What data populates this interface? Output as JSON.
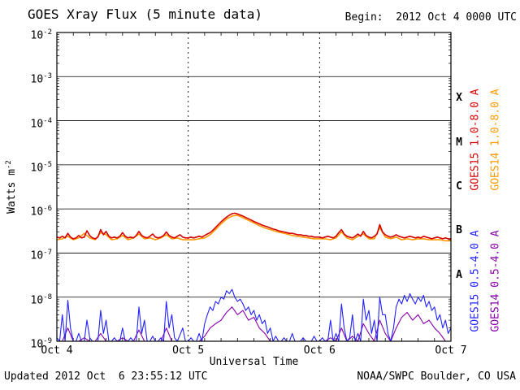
{
  "header": {
    "title": "GOES Xray Flux (5 minute data)",
    "begin": "Begin:  2012 Oct 4 0000 UTC"
  },
  "footer": {
    "updated": "Updated 2012 Oct  6 23:55:12 UTC",
    "credit": "NOAA/SWPC Boulder, CO USA"
  },
  "y_axis": {
    "title_base": "Watts m",
    "title_exp": "-2",
    "tick_exponents": [
      -2,
      -3,
      -4,
      -5,
      -6,
      -7,
      -8,
      -9
    ]
  },
  "x_axis": {
    "title": "Universal Time",
    "tick_labels": [
      "Oct 4",
      "Oct 5",
      "Oct 6",
      "Oct 7"
    ]
  },
  "flare_classes": [
    "X",
    "M",
    "C",
    "B",
    "A"
  ],
  "legend": [
    {
      "label": "GOES15 1.0-8.0 A",
      "color": "#d40000"
    },
    {
      "label": "GOES14 1.0-8.0 A",
      "color": "#ff9900"
    },
    {
      "label": "GOES15 0.5-4.0 A",
      "color": "#2222ff"
    },
    {
      "label": "GOES14 0.5-4.0 A",
      "color": "#8800aa"
    }
  ],
  "colors": {
    "background": "#ffffff",
    "axis": "#000000",
    "goes15_long": "#d40000",
    "goes14_long": "#ff9900",
    "goes15_short": "#2222ff",
    "goes14_short": "#8800aa"
  },
  "chart_data": {
    "type": "line",
    "title": "GOES Xray Flux (5 minute data)",
    "xlabel": "Universal Time",
    "ylabel": "Watts m^-2",
    "x_start": "2012-10-04 0000 UTC",
    "x_end": "2012-10-07 0000 UTC",
    "x_unit": "hours since begin",
    "x_range_hours": [
      0,
      72
    ],
    "y_scale": "log",
    "y_range": [
      1e-09,
      0.01
    ],
    "grid": "decades horizontal solid, day boundaries vertical dashed",
    "legend_position": "right, rotated",
    "series": [
      {
        "name": "GOES14 1.0-8.0 A",
        "color": "#ff9900",
        "scale": 1e-07,
        "dt_hours": 1,
        "values": [
          2.0,
          2.1,
          2.4,
          2.0,
          2.2,
          2.8,
          2.2,
          2.0,
          2.9,
          2.6,
          2.0,
          2.1,
          2.5,
          2.0,
          2.2,
          2.7,
          2.1,
          2.2,
          2.0,
          2.2,
          2.6,
          2.1,
          2.2,
          2.0,
          2.0,
          2.0,
          2.1,
          2.2,
          2.6,
          3.4,
          4.6,
          5.9,
          6.9,
          7.2,
          6.3,
          5.5,
          4.8,
          4.2,
          3.7,
          3.4,
          3.1,
          2.9,
          2.7,
          2.5,
          2.4,
          2.3,
          2.2,
          2.1,
          2.1,
          2.1,
          2.0,
          2.2,
          3.0,
          2.2,
          2.0,
          2.4,
          2.7,
          2.1,
          2.1,
          3.8,
          2.3,
          2.1,
          2.3,
          2.0,
          2.1,
          2.0,
          2.1,
          2.1,
          2.0,
          2.0,
          2.0,
          1.9,
          1.9
        ]
      },
      {
        "name": "GOES14 0.5-4.0 A",
        "color": "#8800aa",
        "scale": 1e-09,
        "dt_hours": 1,
        "values": [
          1.0,
          1.0,
          2.0,
          1.0,
          1.0,
          1.2,
          1.0,
          1.0,
          1.5,
          1.0,
          1.0,
          1.0,
          1.2,
          1.0,
          1.0,
          1.8,
          1.0,
          1.0,
          1.0,
          1.0,
          2.0,
          1.0,
          1.0,
          1.0,
          1.0,
          1.0,
          1.0,
          1.3,
          2.0,
          2.5,
          3.0,
          4.5,
          6.0,
          4.0,
          5.0,
          3.0,
          3.5,
          2.0,
          1.5,
          1.0,
          1.0,
          1.0,
          1.0,
          1.0,
          1.0,
          1.0,
          1.0,
          1.0,
          1.0,
          1.0,
          1.2,
          1.0,
          2.0,
          1.0,
          1.3,
          1.0,
          2.5,
          1.5,
          1.0,
          3.0,
          1.5,
          1.0,
          2.0,
          3.5,
          4.5,
          3.0,
          4.0,
          2.5,
          3.0,
          2.0,
          1.5,
          1.0,
          1.0
        ]
      },
      {
        "name": "GOES15 0.5-4.0 A",
        "color": "#2222ff",
        "scale": 1e-09,
        "dt_hours": 0.5,
        "values": [
          1.2,
          1.0,
          4.0,
          1.0,
          8.5,
          2.0,
          1.0,
          1.0,
          1.5,
          1.0,
          1.0,
          3.0,
          1.2,
          1.0,
          1.0,
          1.0,
          5.0,
          1.5,
          3.0,
          1.0,
          1.0,
          1.2,
          1.0,
          1.0,
          2.0,
          1.0,
          1.0,
          1.2,
          1.0,
          1.0,
          6.0,
          1.5,
          3.0,
          1.0,
          1.0,
          1.3,
          1.0,
          1.0,
          1.2,
          1.0,
          8.0,
          2.0,
          4.0,
          1.2,
          1.0,
          1.4,
          2.0,
          1.0,
          1.0,
          1.2,
          1.0,
          1.0,
          1.5,
          1.0,
          2.5,
          4.0,
          6.0,
          5.0,
          8.0,
          7.0,
          10.0,
          9.0,
          14.0,
          12.0,
          15.0,
          10.0,
          8.0,
          9.0,
          7.0,
          5.0,
          6.0,
          4.0,
          5.0,
          3.0,
          4.0,
          2.5,
          3.0,
          1.5,
          2.0,
          1.0,
          1.3,
          1.0,
          1.0,
          1.2,
          1.0,
          1.0,
          1.5,
          1.0,
          1.0,
          1.0,
          1.2,
          1.0,
          1.0,
          1.0,
          1.3,
          1.0,
          1.0,
          1.2,
          1.0,
          1.0,
          3.0,
          1.0,
          1.5,
          1.0,
          7.0,
          2.0,
          1.0,
          1.2,
          4.0,
          1.0,
          1.5,
          1.0,
          9.0,
          3.0,
          5.0,
          1.5,
          3.0,
          1.0,
          10.0,
          4.0,
          4.0,
          1.5,
          1.0,
          2.0,
          6.0,
          9.0,
          7.0,
          11.0,
          8.0,
          12.0,
          9.0,
          7.0,
          10.0,
          8.0,
          11.0,
          6.0,
          8.0,
          5.0,
          6.0,
          3.0,
          4.0,
          2.0,
          3.0,
          1.5,
          2.0
        ]
      },
      {
        "name": "GOES15 1.0-8.0 A",
        "color": "#d40000",
        "scale": 1e-07,
        "dt_hours": 0.5,
        "values": [
          2.3,
          2.2,
          2.4,
          2.2,
          2.8,
          2.3,
          2.1,
          2.2,
          2.5,
          2.2,
          2.3,
          3.2,
          2.5,
          2.2,
          2.1,
          2.3,
          3.4,
          2.6,
          3.1,
          2.4,
          2.2,
          2.3,
          2.2,
          2.4,
          2.9,
          2.4,
          2.2,
          2.3,
          2.2,
          2.5,
          3.1,
          2.5,
          2.3,
          2.2,
          2.4,
          2.7,
          2.3,
          2.2,
          2.3,
          2.5,
          3.0,
          2.5,
          2.3,
          2.2,
          2.4,
          2.6,
          2.3,
          2.2,
          2.2,
          2.3,
          2.2,
          2.3,
          2.4,
          2.3,
          2.5,
          2.7,
          2.9,
          3.3,
          3.8,
          4.4,
          5.1,
          5.8,
          6.5,
          7.2,
          7.8,
          8.0,
          7.7,
          7.3,
          6.9,
          6.4,
          6.0,
          5.6,
          5.2,
          4.9,
          4.6,
          4.3,
          4.1,
          3.9,
          3.7,
          3.5,
          3.4,
          3.2,
          3.1,
          3.0,
          2.9,
          2.8,
          2.8,
          2.7,
          2.6,
          2.6,
          2.5,
          2.5,
          2.4,
          2.4,
          2.3,
          2.3,
          2.3,
          2.2,
          2.3,
          2.4,
          2.3,
          2.2,
          2.4,
          2.9,
          3.4,
          2.7,
          2.4,
          2.3,
          2.2,
          2.4,
          2.7,
          2.4,
          3.1,
          2.5,
          2.3,
          2.2,
          2.4,
          2.7,
          4.4,
          3.0,
          2.6,
          2.4,
          2.3,
          2.4,
          2.6,
          2.4,
          2.3,
          2.2,
          2.3,
          2.4,
          2.3,
          2.2,
          2.3,
          2.2,
          2.4,
          2.3,
          2.2,
          2.1,
          2.2,
          2.3,
          2.2,
          2.1,
          2.2,
          2.1,
          2.1
        ]
      }
    ]
  }
}
